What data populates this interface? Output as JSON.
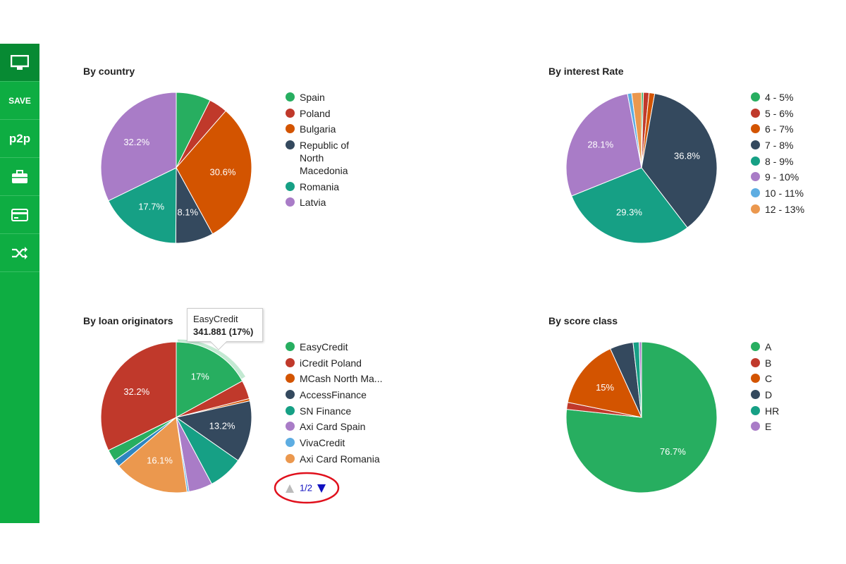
{
  "sidebar": {
    "items": [
      "SAVE",
      "p2p"
    ]
  },
  "chart_data": [
    {
      "type": "pie",
      "title": "By country",
      "categories": [
        "Spain",
        "Poland",
        "Bulgaria",
        "Republic of North Macedonia",
        "Romania",
        "Latvia"
      ],
      "values": [
        7.4,
        4.0,
        30.6,
        8.1,
        17.7,
        32.2
      ],
      "value_labels": [
        null,
        null,
        "30.6%",
        "8.1%",
        "17.7%",
        "32.2%"
      ],
      "colors": [
        "#27ae60",
        "#c0392b",
        "#d35400",
        "#34495e",
        "#16a085",
        "#a97cc7"
      ]
    },
    {
      "type": "pie",
      "title": "By interest Rate",
      "categories": [
        "4 - 5%",
        "5 - 6%",
        "6 - 7%",
        "7 - 8%",
        "8 - 9%",
        "9 - 10%",
        "10 - 11%",
        "12 - 13%"
      ],
      "values": [
        0.4,
        1.2,
        1.2,
        36.8,
        29.3,
        28.1,
        0.9,
        2.1
      ],
      "value_labels": [
        null,
        null,
        null,
        "36.8%",
        "29.3%",
        "28.1%",
        null,
        null
      ],
      "colors": [
        "#27ae60",
        "#c0392b",
        "#d35400",
        "#34495e",
        "#16a085",
        "#a97cc7",
        "#5dade2",
        "#eb984e"
      ]
    },
    {
      "type": "pie",
      "title": "By loan originators",
      "categories": [
        "EasyCredit",
        "iCredit Poland",
        "MCash North Ma...",
        "AccessFinance",
        "SN Finance",
        "Axi Card Spain",
        "VivaCredit",
        "Axi Card Romania",
        null,
        null,
        null
      ],
      "values": [
        17,
        4.0,
        0.5,
        13.2,
        7.5,
        5.1,
        0.4,
        16.1,
        1.5,
        2.5,
        32.2
      ],
      "value_labels": [
        "17%",
        null,
        null,
        "13.2%",
        null,
        null,
        null,
        "16.1%",
        null,
        null,
        "32.2%"
      ],
      "colors": [
        "#27ae60",
        "#c0392b",
        "#d35400",
        "#34495e",
        "#16a085",
        "#a97cc7",
        "#5dade2",
        "#eb984e",
        "#2e86c1",
        "#27ae60",
        "#c0392b"
      ],
      "tooltip": {
        "title": "EasyCredit",
        "text": "341.881 (17%)"
      },
      "pager": "1/2"
    },
    {
      "type": "pie",
      "title": "By score class",
      "categories": [
        "A",
        "B",
        "C",
        "D",
        "HR",
        "E"
      ],
      "values": [
        76.7,
        1.5,
        15,
        5,
        1.3,
        0.5
      ],
      "value_labels": [
        "76.7%",
        null,
        "15%",
        null,
        null,
        null
      ],
      "colors": [
        "#27ae60",
        "#c0392b",
        "#d35400",
        "#34495e",
        "#16a085",
        "#a97cc7"
      ]
    }
  ]
}
